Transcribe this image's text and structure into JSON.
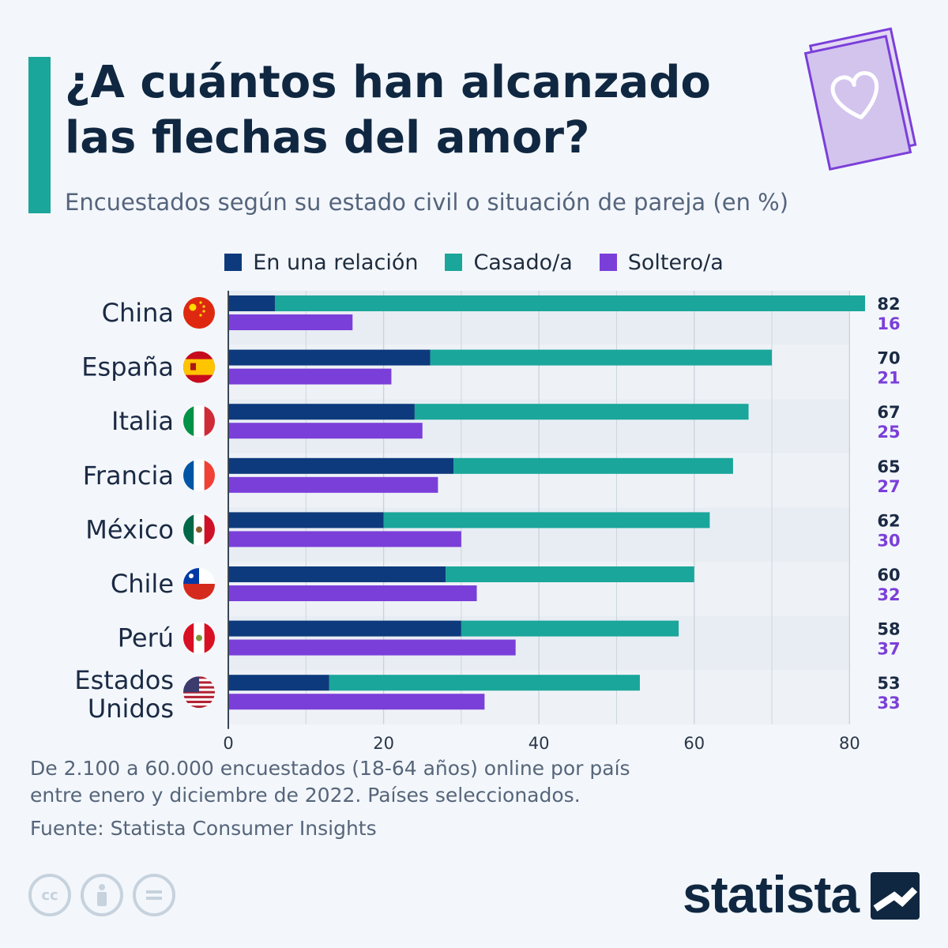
{
  "header": {
    "title": "¿A cuántos han alcanzado las flechas del amor?",
    "subtitle": "Encuestados según su estado civil o situación de pareja (en %)"
  },
  "colors": {
    "relacion": "#0d3a7c",
    "casado": "#1aa69a",
    "soltero": "#7b3fd9",
    "accent": "#1aa69a"
  },
  "chart_data": {
    "type": "bar",
    "orientation": "horizontal",
    "stacked_groups": true,
    "categories": [
      "China",
      "España",
      "Italia",
      "Francia",
      "México",
      "Chile",
      "Perú",
      "Estados Unidos"
    ],
    "category_flags": [
      "china-flag-icon",
      "spain-flag-icon",
      "italy-flag-icon",
      "france-flag-icon",
      "mexico-flag-icon",
      "chile-flag-icon",
      "peru-flag-icon",
      "usa-flag-icon"
    ],
    "series": [
      {
        "name": "En una relación",
        "stack": "pareja",
        "values": [
          6,
          26,
          24,
          29,
          20,
          28,
          30,
          13
        ]
      },
      {
        "name": "Casado/a",
        "stack": "pareja",
        "values": [
          76,
          44,
          43,
          36,
          42,
          32,
          28,
          40
        ]
      },
      {
        "name": "Soltero/a",
        "stack": "solo",
        "values": [
          16,
          21,
          25,
          27,
          30,
          32,
          37,
          33
        ]
      }
    ],
    "totals_label": [
      "82",
      "70",
      "67",
      "65",
      "62",
      "60",
      "58",
      "53"
    ],
    "single_label": [
      "16",
      "21",
      "25",
      "27",
      "30",
      "32",
      "37",
      "33"
    ],
    "xlim": [
      0,
      82
    ],
    "xticks": [
      0,
      20,
      40,
      60,
      80
    ],
    "grid": true,
    "legend_position": "top-center"
  },
  "footer": {
    "note_line1": "De 2.100 a 60.000 encuestados (18-64 años) online por país",
    "note_line2": "entre enero y diciembre de 2022. Países seleccionados.",
    "source": "Fuente: Statista Consumer Insights",
    "brand": "statista"
  }
}
